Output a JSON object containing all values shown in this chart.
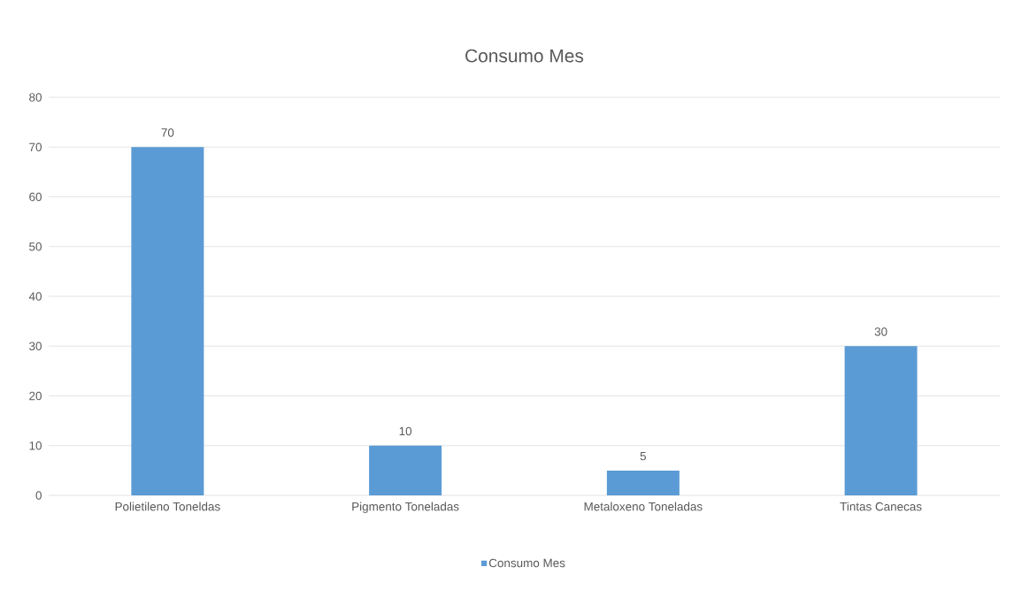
{
  "chart_data": {
    "type": "bar",
    "title": "Consumo Mes",
    "categories": [
      "Polietileno Toneldas",
      "Pigmento Toneladas",
      "Metaloxeno Toneladas",
      "Tintas Canecas"
    ],
    "series": [
      {
        "name": "Consumo Mes",
        "color": "#5b9bd5",
        "values": [
          70,
          10,
          5,
          30
        ]
      }
    ],
    "ylim": [
      0,
      80
    ],
    "yticks": [
      0,
      10,
      20,
      30,
      40,
      50,
      60,
      70,
      80
    ],
    "grid": "y",
    "data_labels": true,
    "legend": "bottom"
  }
}
